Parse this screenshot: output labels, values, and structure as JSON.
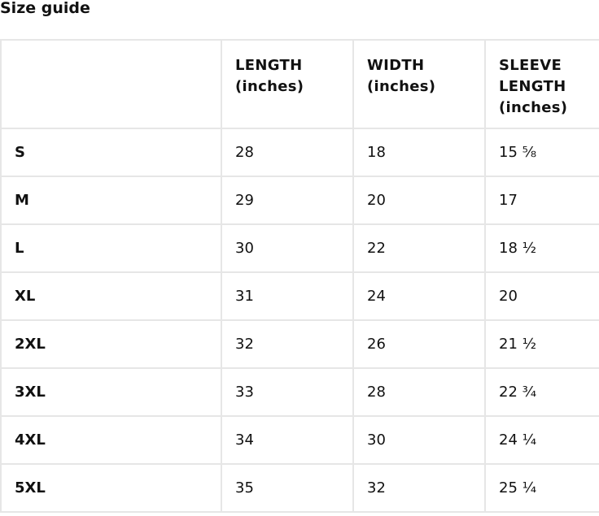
{
  "title": "Size guide",
  "table": {
    "headers": [
      "",
      "LENGTH (inches)",
      "WIDTH (inches)",
      "SLEEVE LENGTH (inches)"
    ],
    "rows": [
      {
        "size": "S",
        "length": "28",
        "width": "18",
        "sleeve": "15 ⅝"
      },
      {
        "size": "M",
        "length": "29",
        "width": "20",
        "sleeve": "17"
      },
      {
        "size": "L",
        "length": "30",
        "width": "22",
        "sleeve": "18 ½"
      },
      {
        "size": "XL",
        "length": "31",
        "width": "24",
        "sleeve": "20"
      },
      {
        "size": "2XL",
        "length": "32",
        "width": "26",
        "sleeve": "21 ½"
      },
      {
        "size": "3XL",
        "length": "33",
        "width": "28",
        "sleeve": "22 ¾"
      },
      {
        "size": "4XL",
        "length": "34",
        "width": "30",
        "sleeve": "24 ¼"
      },
      {
        "size": "5XL",
        "length": "35",
        "width": "32",
        "sleeve": "25 ¼"
      }
    ]
  }
}
